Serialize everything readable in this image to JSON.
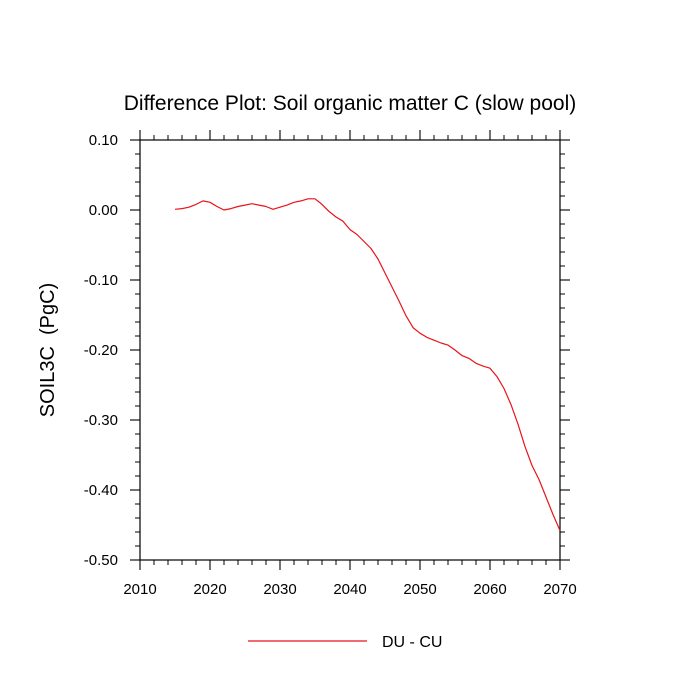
{
  "chart_data": {
    "type": "line",
    "title": "Difference Plot: Soil organic matter C (slow pool)",
    "xlabel": "",
    "ylabel": "SOIL3C  (PgC)",
    "xlim": [
      2010,
      2070
    ],
    "ylim": [
      -0.5,
      0.1
    ],
    "x_ticks": [
      2010,
      2020,
      2030,
      2040,
      2050,
      2060,
      2070
    ],
    "y_ticks": [
      0.1,
      0.0,
      -0.1,
      -0.2,
      -0.3,
      -0.4,
      -0.5
    ],
    "x_tick_labels": [
      "2010",
      "2020",
      "2030",
      "2040",
      "2050",
      "2060",
      "2070"
    ],
    "y_tick_labels": [
      "0.10",
      "0.00",
      "-0.10",
      "-0.20",
      "-0.30",
      "-0.40",
      "-0.50"
    ],
    "grid": false,
    "legend_position": "bottom-center",
    "series": [
      {
        "name": "DU - CU",
        "color": "#e8141a",
        "x": [
          2015,
          2016,
          2017,
          2018,
          2019,
          2020,
          2021,
          2022,
          2023,
          2024,
          2025,
          2026,
          2027,
          2028,
          2029,
          2030,
          2031,
          2032,
          2033,
          2034,
          2035,
          2036,
          2037,
          2038,
          2039,
          2040,
          2041,
          2042,
          2043,
          2044,
          2045,
          2046,
          2047,
          2048,
          2049,
          2050,
          2051,
          2052,
          2053,
          2054,
          2055,
          2056,
          2057,
          2058,
          2059,
          2060,
          2061,
          2062,
          2063,
          2064,
          2065,
          2066,
          2067,
          2068,
          2069,
          2070
        ],
        "values": [
          0.001,
          0.002,
          0.004,
          0.008,
          0.013,
          0.011,
          0.005,
          0.0,
          0.002,
          0.005,
          0.007,
          0.009,
          0.007,
          0.005,
          0.001,
          0.004,
          0.007,
          0.011,
          0.013,
          0.016,
          0.016,
          0.008,
          -0.002,
          -0.01,
          -0.016,
          -0.028,
          -0.035,
          -0.045,
          -0.055,
          -0.07,
          -0.09,
          -0.11,
          -0.13,
          -0.151,
          -0.168,
          -0.176,
          -0.182,
          -0.186,
          -0.19,
          -0.193,
          -0.2,
          -0.208,
          -0.212,
          -0.219,
          -0.223,
          -0.226,
          -0.238,
          -0.255,
          -0.278,
          -0.306,
          -0.338,
          -0.365,
          -0.385,
          -0.41,
          -0.435,
          -0.458
        ]
      }
    ]
  }
}
